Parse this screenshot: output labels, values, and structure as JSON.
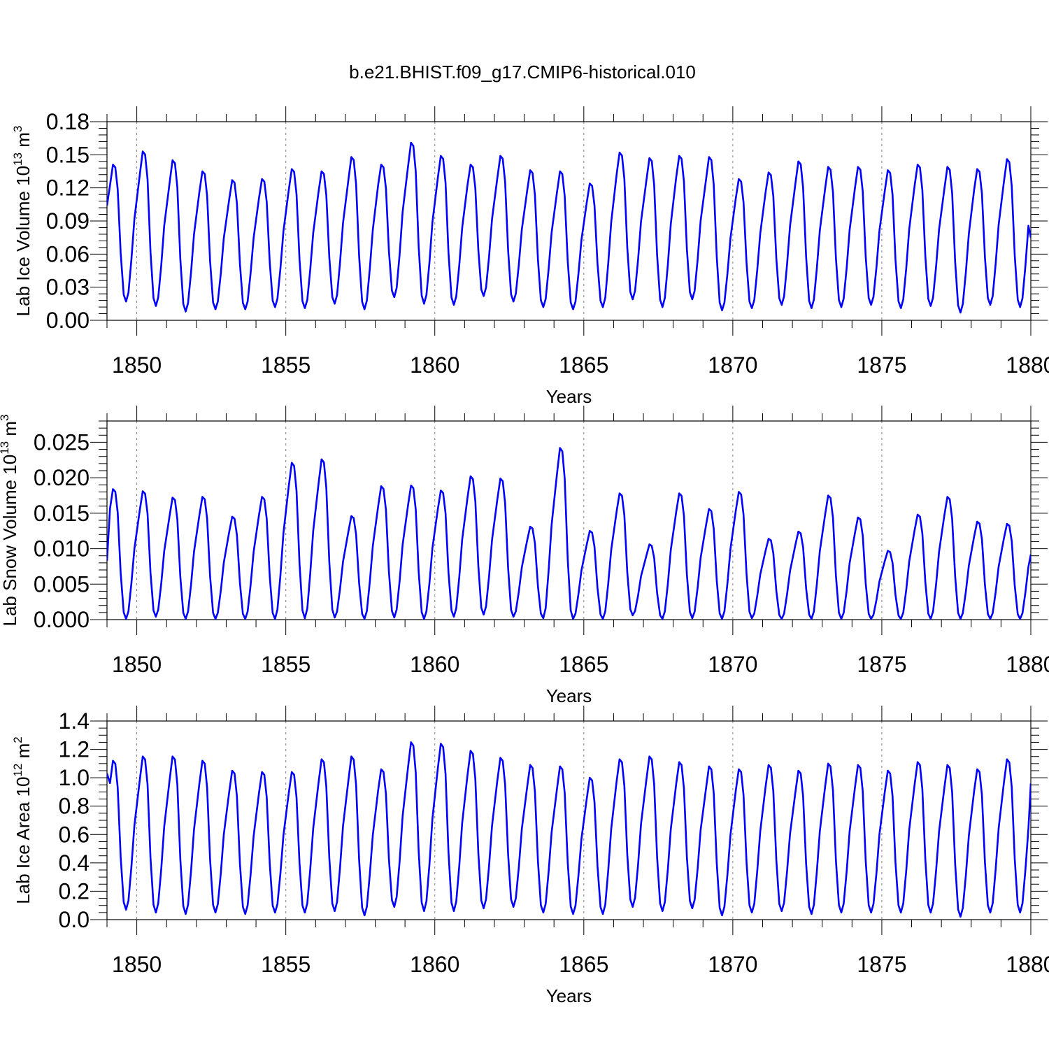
{
  "title": "b.e21.BHIST.f09_g17.CMIP6-historical.010",
  "colors": {
    "line": "#0000ff",
    "grid": "#808080",
    "frame": "#000000"
  },
  "chart_data": [
    {
      "type": "line",
      "ylabel": "Lab Ice Volume 10",
      "ylabel_exp": "13",
      "ylabel_unit": " m",
      "ylabel_unit_exp": "3",
      "xlabel": "Years",
      "xlim": [
        1849,
        1880
      ],
      "ylim": [
        0,
        0.18
      ],
      "xticks": [
        1850,
        1855,
        1860,
        1865,
        1870,
        1875,
        1880
      ],
      "xtick_labels": [
        "1850",
        "1855",
        "1860",
        "1865",
        "1870",
        "1875",
        "1880"
      ],
      "yticks": [
        0,
        0.03,
        0.06,
        0.09,
        0.12,
        0.15,
        0.18
      ],
      "ytick_labels": [
        "0.00",
        "0.03",
        "0.06",
        "0.09",
        "0.12",
        "0.15",
        "0.18"
      ],
      "y_minor_step": 0.006,
      "grid": "x-dashed",
      "start_year": 1849,
      "series": [
        {
          "peaks": [
            0.141,
            0.153,
            0.145,
            0.135,
            0.127,
            0.128,
            0.137,
            0.135,
            0.148,
            0.141,
            0.161,
            0.149,
            0.141,
            0.149,
            0.136,
            0.135,
            0.124,
            0.152,
            0.147,
            0.149,
            0.148,
            0.128,
            0.134,
            0.144,
            0.139,
            0.139,
            0.136,
            0.141,
            0.139,
            0.137,
            0.146
          ],
          "troughs": [
            0.017,
            0.013,
            0.008,
            0.01,
            0.01,
            0.012,
            0.011,
            0.015,
            0.01,
            0.021,
            0.015,
            0.014,
            0.022,
            0.017,
            0.012,
            0.01,
            0.012,
            0.019,
            0.012,
            0.019,
            0.009,
            0.011,
            0.014,
            0.011,
            0.012,
            0.014,
            0.011,
            0.013,
            0.007,
            0.014,
            0.012
          ],
          "start_value": 0.104,
          "end_value": 0.075
        }
      ]
    },
    {
      "type": "line",
      "ylabel": "Lab Snow Volume 10",
      "ylabel_exp": "13",
      "ylabel_unit": " m",
      "ylabel_unit_exp": "3",
      "xlabel": "Years",
      "xlim": [
        1849,
        1880
      ],
      "ylim": [
        0,
        0.028
      ],
      "xticks": [
        1850,
        1855,
        1860,
        1865,
        1870,
        1875,
        1880
      ],
      "xtick_labels": [
        "1850",
        "1855",
        "1860",
        "1865",
        "1870",
        "1875",
        "1880"
      ],
      "yticks": [
        0,
        0.005,
        0.01,
        0.015,
        0.02,
        0.025
      ],
      "ytick_labels": [
        "0.000",
        "0.005",
        "0.010",
        "0.015",
        "0.020",
        "0.025"
      ],
      "y_minor_step": 0.001,
      "grid": "x-dashed",
      "start_year": 1849,
      "series": [
        {
          "peaks": [
            0.0184,
            0.0181,
            0.0172,
            0.0173,
            0.0145,
            0.0173,
            0.0221,
            0.0226,
            0.0146,
            0.0188,
            0.0189,
            0.0182,
            0.0202,
            0.0199,
            0.0131,
            0.0242,
            0.0125,
            0.0178,
            0.0106,
            0.0178,
            0.0156,
            0.018,
            0.0114,
            0.0124,
            0.0175,
            0.0144,
            0.0097,
            0.0148,
            0.0173,
            0.0138,
            0.0135
          ],
          "troughs": [
            0.0001,
            0.0004,
            0.0001,
            0.0001,
            0.0001,
            0.0001,
            0.0002,
            0.0003,
            0.0001,
            0.0003,
            0.0001,
            0.0004,
            0.0007,
            0.0004,
            0.0002,
            0.0001,
            0.0001,
            0.0006,
            0.0001,
            0.0002,
            0.0001,
            0.0002,
            0.0001,
            0.0001,
            0.0001,
            0.0001,
            0.0001,
            0.0001,
            0.0001,
            0.0001,
            0.0001
          ],
          "start_value": 0.0083,
          "end_value": 0.0092
        }
      ]
    },
    {
      "type": "line",
      "ylabel": "Lab Ice Area 10",
      "ylabel_exp": "12",
      "ylabel_unit": " m",
      "ylabel_unit_exp": "2",
      "xlabel": "Years",
      "xlim": [
        1849,
        1880
      ],
      "ylim": [
        0,
        1.4
      ],
      "xticks": [
        1850,
        1855,
        1860,
        1865,
        1870,
        1875,
        1880
      ],
      "xtick_labels": [
        "1850",
        "1855",
        "1860",
        "1865",
        "1870",
        "1875",
        "1880"
      ],
      "yticks": [
        0,
        0.2,
        0.4,
        0.6,
        0.8,
        1.0,
        1.2,
        1.4
      ],
      "ytick_labels": [
        "0.0",
        "0.2",
        "0.4",
        "0.6",
        "0.8",
        "1.0",
        "1.2",
        "1.4"
      ],
      "y_minor_step": 0.05,
      "grid": "x-dashed",
      "start_year": 1849,
      "series": [
        {
          "peaks": [
            1.12,
            1.15,
            1.15,
            1.12,
            1.05,
            1.04,
            1.04,
            1.13,
            1.15,
            1.06,
            1.25,
            1.24,
            1.19,
            1.14,
            1.09,
            1.08,
            1.0,
            1.13,
            1.15,
            1.11,
            1.08,
            1.06,
            1.09,
            1.05,
            1.1,
            1.09,
            1.05,
            1.11,
            1.09,
            1.06,
            1.13
          ],
          "troughs": [
            0.07,
            0.05,
            0.04,
            0.05,
            0.04,
            0.05,
            0.05,
            0.06,
            0.03,
            0.09,
            0.06,
            0.06,
            0.08,
            0.09,
            0.05,
            0.04,
            0.04,
            0.09,
            0.06,
            0.08,
            0.03,
            0.05,
            0.06,
            0.04,
            0.05,
            0.05,
            0.05,
            0.05,
            0.02,
            0.05,
            0.05
          ],
          "start_value": 1.03,
          "end_value": 0.96
        }
      ]
    }
  ]
}
